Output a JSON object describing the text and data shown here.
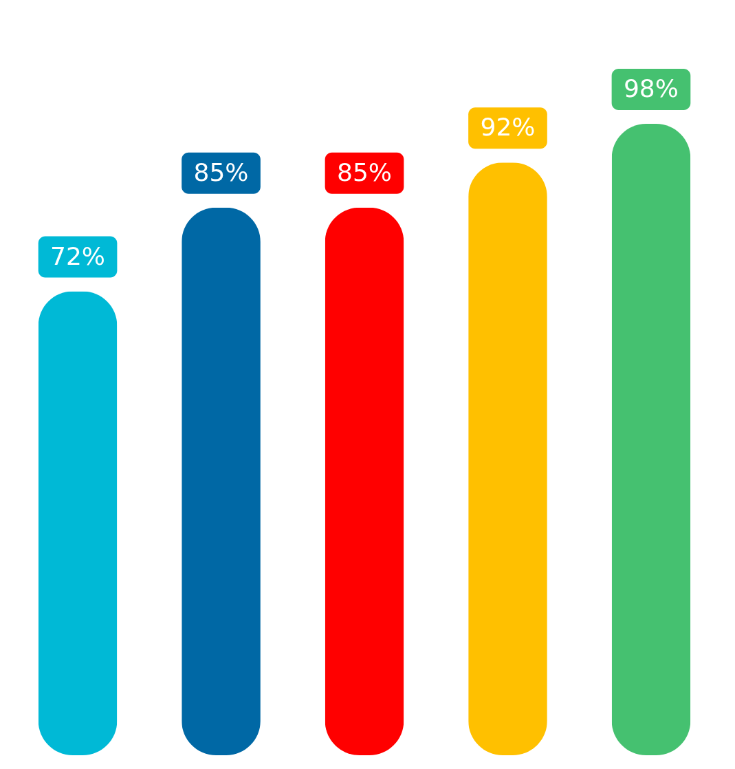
{
  "chart_data": {
    "type": "bar",
    "categories": [
      null,
      null,
      null,
      null,
      null
    ],
    "values": [
      72,
      85,
      85,
      92,
      98
    ],
    "colors": [
      "#00b9d6",
      "#0068a5",
      "#ff0000",
      "#ffc000",
      "#45c170"
    ],
    "value_labels": [
      "72%",
      "85%",
      "85%",
      "92%",
      "98%"
    ]
  }
}
